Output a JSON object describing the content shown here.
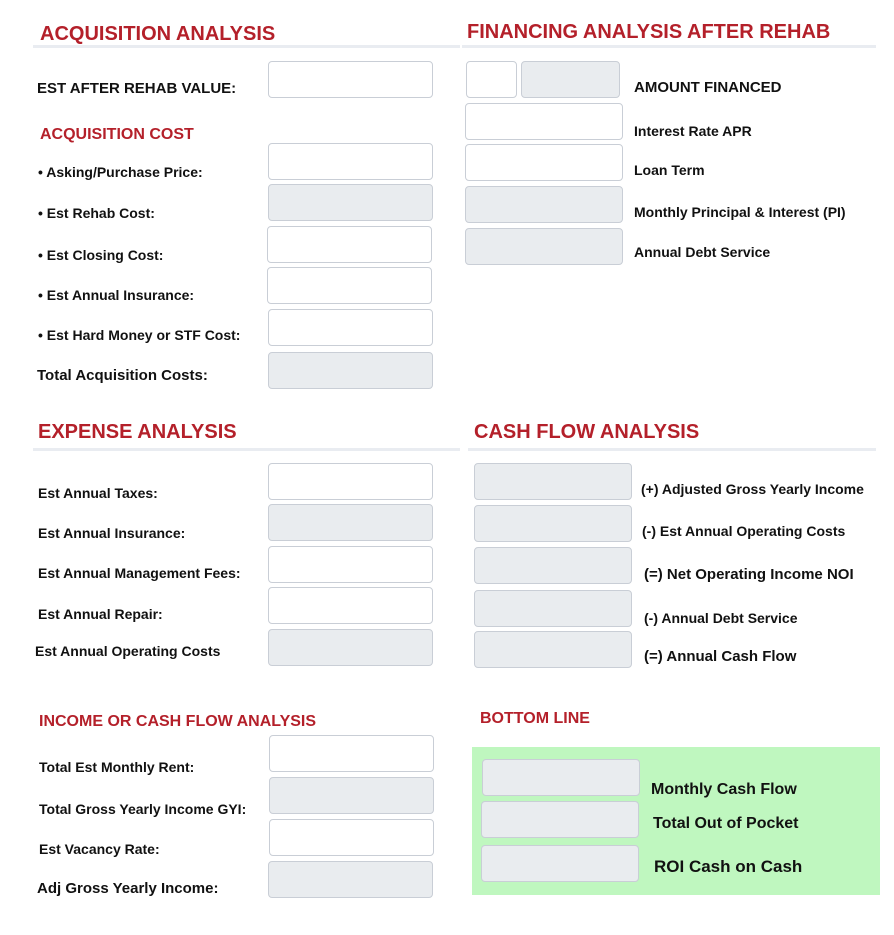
{
  "acquisition": {
    "title": "ACQUISITION ANALYSIS",
    "after_rehab_value_label": "EST AFTER REHAB VALUE:",
    "cost_title": "ACQUISITION COST",
    "asking_price_label": "• Asking/Purchase Price:",
    "rehab_cost_label": "• Est Rehab Cost:",
    "closing_cost_label": "• Est Closing Cost:",
    "annual_insurance_label": "• Est Annual Insurance:",
    "hard_money_label": "• Est Hard Money or STF Cost:",
    "total_label": "Total Acquisition Costs:"
  },
  "financing": {
    "title": "FINANCING ANALYSIS AFTER REHAB",
    "amount_financed_label": "AMOUNT FINANCED",
    "interest_rate_label": "Interest Rate APR",
    "loan_term_label": "Loan Term",
    "monthly_pi_label": "Monthly Principal & Interest (PI)",
    "annual_debt_label": "Annual Debt Service"
  },
  "expense": {
    "title": "EXPENSE ANALYSIS",
    "taxes_label": "Est Annual Taxes:",
    "insurance_label": "Est Annual Insurance:",
    "management_label": "Est Annual Management Fees:",
    "repair_label": "Est Annual Repair:",
    "operating_label": "Est Annual Operating Costs"
  },
  "cashflow": {
    "title": "CASH FLOW ANALYSIS",
    "agyi_label": "(+) Adjusted Gross Yearly Income",
    "operating_label": "(-) Est Annual Operating Costs",
    "noi_label": "(=) Net Operating Income NOI",
    "debt_label": "(-) Annual Debt Service",
    "annual_cf_label": "(=) Annual Cash Flow"
  },
  "income": {
    "title": "INCOME OR CASH FLOW ANALYSIS",
    "monthly_rent_label": "Total Est Monthly Rent:",
    "gyi_label": "Total Gross Yearly Income GYI:",
    "vacancy_label": "Est Vacancy Rate:",
    "adj_gyi_label": "Adj Gross Yearly Income:"
  },
  "bottom_line": {
    "title": "BOTTOM LINE",
    "monthly_cf_label": "Monthly Cash Flow",
    "out_of_pocket_label": "Total Out of Pocket",
    "roi_label": "ROI Cash on Cash",
    "panel_color": "#bff7bf"
  },
  "theme": {
    "heading_color": "#b4202a",
    "readonly_field_color": "#e9ecef",
    "rule_color": "#e9ecf1"
  }
}
